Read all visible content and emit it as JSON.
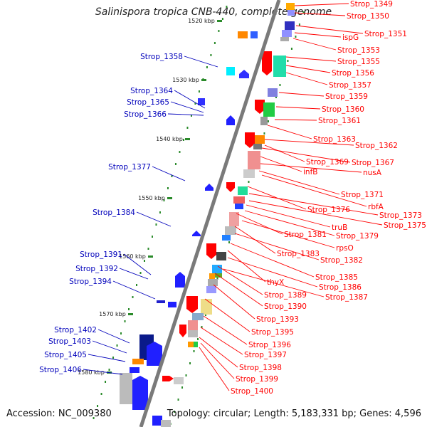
{
  "title": "Salinispora tropica CNB-440, complete genome",
  "footer": {
    "accession": "Accession: NC_009380",
    "summary": "Topology: circular; Length: 5,183,331 bp; Genes: 4,596"
  },
  "colors": {
    "backbone": "#808080",
    "forward_label": "#ff0000",
    "reverse_label": "#0000bb",
    "ticks": "#2a8a2a"
  },
  "scale_ticks": [
    "1520 kbp",
    "1530 kbp",
    "1540 kbp",
    "1550 kbp",
    "1560 kbp",
    "1570 kbp",
    "1580 kbp"
  ],
  "forward_genes": [
    "Strop_1349",
    "Strop_1350",
    "Strop_1351",
    "ispG",
    "Strop_1353",
    "Strop_1355",
    "Strop_1356",
    "Strop_1357",
    "Strop_1359",
    "Strop_1360",
    "Strop_1361",
    "Strop_1363",
    "Strop_1362",
    "Strop_1369",
    "Strop_1367",
    "infB",
    "nusA",
    "Strop_1371",
    "rbfA",
    "Strop_1376",
    "Strop_1373",
    "Strop_1375",
    "truB",
    "Strop_1379",
    "Strop_1381",
    "rpsO",
    "Strop_1383",
    "Strop_1382",
    "Strop_1385",
    "thyX",
    "Strop_1386",
    "Strop_1389",
    "Strop_1387",
    "Strop_1390",
    "Strop_1393",
    "Strop_1395",
    "Strop_1396",
    "Strop_1397",
    "Strop_1398",
    "Strop_1399",
    "Strop_1400"
  ],
  "reverse_genes": [
    "Strop_1358",
    "Strop_1364",
    "Strop_1365",
    "Strop_1366",
    "Strop_1377",
    "Strop_1384",
    "Strop_1391",
    "Strop_1392",
    "Strop_1394",
    "Strop_1402",
    "Strop_1403",
    "Strop_1405",
    "Strop_1406"
  ]
}
